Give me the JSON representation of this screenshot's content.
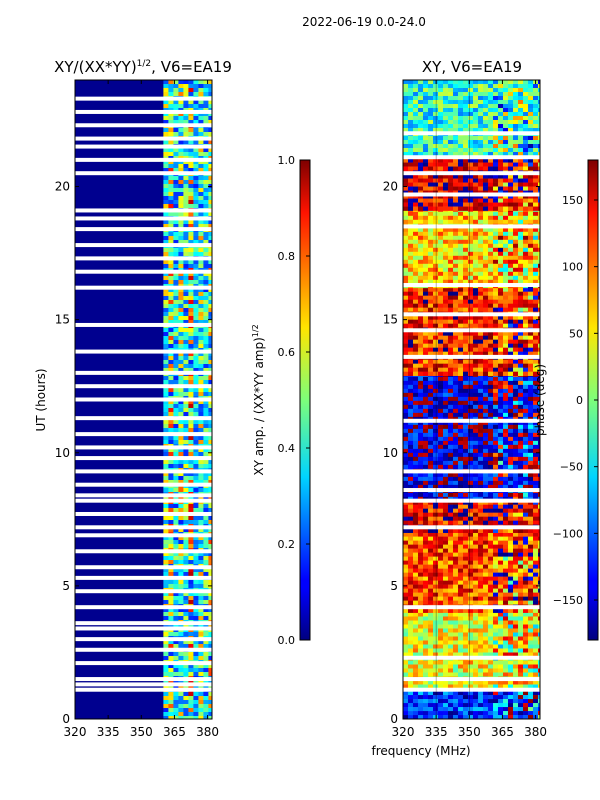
{
  "suptitle": "2022-06-19 0.0-24.0",
  "colors": {
    "white_gap": "#ffffff",
    "amp_background": "#00008f",
    "grid": "#000000"
  },
  "chart_data": [
    {
      "type": "heatmap",
      "title_base": "XY/(XX*YY)",
      "title_exp": "1/2",
      "title_suffix": ", V6=EA19",
      "xlabel": "",
      "ylabel": "UT (hours)",
      "xlim": [
        320,
        382
      ],
      "ylim": [
        0,
        24
      ],
      "xticks": [
        "320",
        "335",
        "350",
        "365",
        "380"
      ],
      "xtick_values": [
        320,
        335,
        350,
        365,
        380
      ],
      "yticks": [
        "0",
        "5",
        "10",
        "15",
        "20"
      ],
      "ytick_values": [
        0,
        5,
        10,
        15,
        20
      ],
      "active_band_mhz": [
        360,
        382
      ],
      "gaps_ut_hours": [
        1.1,
        1.3,
        1.5,
        2.1,
        2.6,
        3.0,
        3.4,
        3.6,
        4.2,
        4.8,
        5.3,
        5.7,
        6.3,
        6.9,
        7.2,
        7.7,
        8.2,
        8.4,
        8.8,
        9.3,
        9.8,
        10.2,
        10.7,
        11.3,
        12.0,
        12.5,
        13.0,
        13.8,
        14.8,
        16.2,
        16.8,
        17.3,
        17.8,
        18.4,
        18.8,
        19.1,
        20.5,
        21.0,
        21.5,
        21.8,
        22.3,
        22.8,
        23.3
      ],
      "colorbar": {
        "label_base": "XY amp. / (XX*YY amp)",
        "label_exp": "1/2",
        "ticks": [
          "0.0",
          "0.2",
          "0.4",
          "0.6",
          "0.8",
          "1.0"
        ],
        "tick_values": [
          0.0,
          0.2,
          0.4,
          0.6,
          0.8,
          1.0
        ],
        "range": [
          0.0,
          1.0
        ]
      }
    },
    {
      "type": "heatmap",
      "title_base": "XY, V6=EA19",
      "title_exp": "",
      "title_suffix": "",
      "xlabel": "frequency (MHz)",
      "ylabel": "",
      "xlim": [
        320,
        382
      ],
      "ylim": [
        0,
        24
      ],
      "xticks": [
        "320",
        "335",
        "350",
        "365",
        "380"
      ],
      "xtick_values": [
        320,
        335,
        350,
        365,
        380
      ],
      "yticks": [
        "0",
        "5",
        "10",
        "15",
        "20"
      ],
      "ytick_values": [
        0,
        5,
        10,
        15,
        20
      ],
      "gaps_ut_hours": [
        1.1,
        1.5,
        2.3,
        4.2,
        7.2,
        8.2,
        8.6,
        9.3,
        11.2,
        13.6,
        14.6,
        15.2,
        16.3,
        18.5,
        19.7,
        20.5,
        21.1,
        22.0
      ],
      "phase_bands": [
        {
          "from": 0.0,
          "to": 1.2,
          "base": -120
        },
        {
          "from": 1.2,
          "to": 4.0,
          "base": 40
        },
        {
          "from": 4.0,
          "to": 7.0,
          "base": 110
        },
        {
          "from": 7.0,
          "to": 8.2,
          "base": 140
        },
        {
          "from": 8.2,
          "to": 13.0,
          "base": -150
        },
        {
          "from": 13.0,
          "to": 16.2,
          "base": 125
        },
        {
          "from": 16.2,
          "to": 19.2,
          "base": 60
        },
        {
          "from": 19.2,
          "to": 21.2,
          "base": 150
        },
        {
          "from": 21.2,
          "to": 24.0,
          "base": -30
        }
      ],
      "colorbar": {
        "label": "phase (deg)",
        "ticks": [
          "−150",
          "−100",
          "−50",
          "0",
          "50",
          "100",
          "150"
        ],
        "tick_values": [
          -150,
          -100,
          -50,
          0,
          50,
          100,
          150
        ],
        "range": [
          -180,
          180
        ]
      }
    }
  ]
}
